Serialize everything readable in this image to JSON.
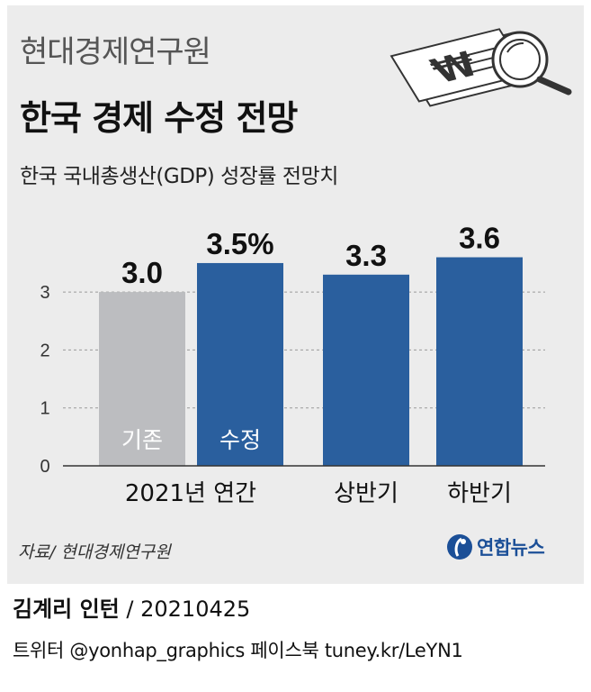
{
  "header": {
    "org_title": "현대경제연구원",
    "main_title": "한국 경제 수정 전망",
    "subtitle": "한국 국내총생산(GDP) 성장률 전망치"
  },
  "chart_data": {
    "type": "bar",
    "ylim": [
      0,
      4
    ],
    "yticks": [
      0,
      1,
      2,
      3
    ],
    "grid": true,
    "bars": [
      {
        "value": 3.0,
        "label": "3.0",
        "inner_label": "기존",
        "color": "#bcbdc0"
      },
      {
        "value": 3.5,
        "label": "3.5%",
        "inner_label": "수정",
        "color": "#2a5f9e"
      },
      {
        "value": 3.3,
        "label": "3.3",
        "inner_label": "",
        "color": "#2a5f9e"
      },
      {
        "value": 3.6,
        "label": "3.6",
        "inner_label": "",
        "color": "#2a5f9e"
      }
    ],
    "categories": [
      "2021년 연간",
      "상반기",
      "하반기"
    ]
  },
  "footer": {
    "source": "자료/ 현대경제연구원",
    "logo_text": "연합뉴스",
    "author": "김계리 인턴",
    "date_suffix": " / 20210425",
    "social": "트위터 @yonhap_graphics  페이스북 tuney.kr/LeYN1"
  },
  "colors": {
    "accent": "#2a5f9e",
    "baseline": "#bcbdc0",
    "background": "#ececec"
  },
  "icons": [
    "document-won-icon",
    "magnifier-icon",
    "yonhap-logo-icon"
  ]
}
